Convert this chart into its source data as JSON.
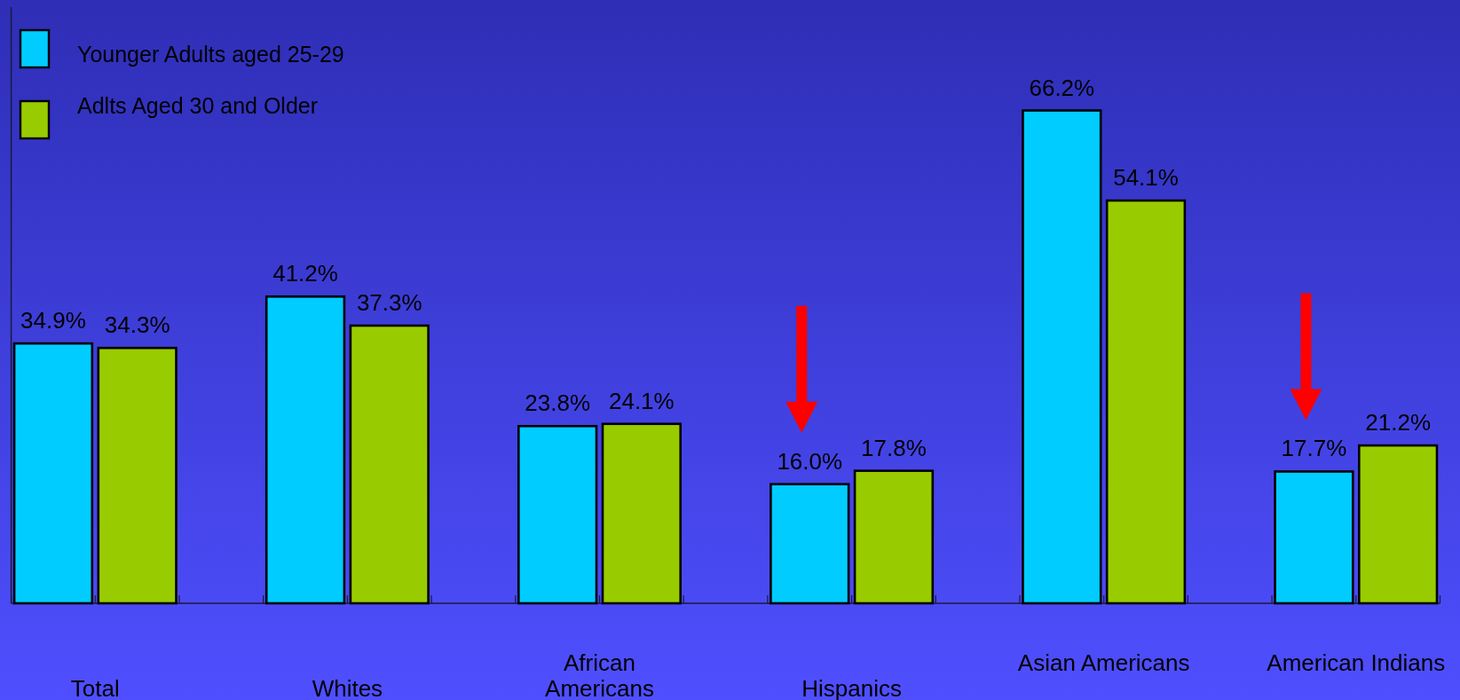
{
  "chart_data": {
    "type": "bar",
    "categories": [
      "Total",
      "Whites",
      "African\nAmericans",
      "Hispanics",
      "Asian Americans",
      "American Indians"
    ],
    "series": [
      {
        "name": "Younger Adults aged 25-29",
        "color": "#00ccff",
        "values": [
          34.9,
          41.2,
          23.8,
          16.0,
          66.2,
          17.7
        ],
        "value_labels": [
          "34.9%",
          "41.2%",
          "23.8%",
          "16.0%",
          "66.2%",
          "17.7%"
        ]
      },
      {
        "name": "Adlts Aged 30 and Older",
        "color": "#99cc00",
        "values": [
          34.3,
          37.3,
          24.1,
          17.8,
          54.1,
          21.2
        ],
        "value_labels": [
          "34.3%",
          "37.3%",
          "24.1%",
          "17.8%",
          "54.1%",
          "21.2%"
        ]
      }
    ],
    "legend": "top left"
  }
}
